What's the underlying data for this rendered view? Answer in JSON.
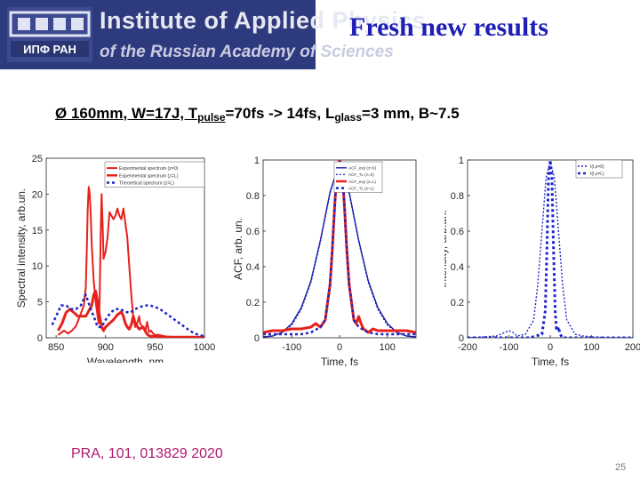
{
  "header": {
    "institute_line1": "Institute of Applied Physics",
    "institute_line2": "of the Russian Academy of Sciences",
    "logo_text": "ИПФ РАН",
    "slide_title": "Fresh new results",
    "banner_color": "#2e3a7e",
    "title_color": "#1f1fb8"
  },
  "params": {
    "part1": "Ø 160mm, W=17J, T",
    "sub1": "pulse",
    "part2": "=70fs -> 14fs, L",
    "sub2": "glass",
    "part3": "=3 mm, B~7.5"
  },
  "reference": "PRA, 101,  013829 2020",
  "page_number": "25",
  "chart_data": [
    {
      "type": "line",
      "xlabel": "Wavelength, nm",
      "ylabel": "Spectral intensity, arb.un.",
      "xlim": [
        840,
        1000
      ],
      "ylim": [
        0,
        25
      ],
      "xticks": [
        850,
        900,
        950,
        1000
      ],
      "yticks": [
        0,
        5,
        10,
        15,
        20,
        25
      ],
      "legend_position": "top-right",
      "series": [
        {
          "name": "Experimental spectrum (z=0)",
          "color": "#e8201c",
          "width": 2,
          "dash": "",
          "x": [
            852,
            858,
            862,
            866,
            870,
            874,
            878,
            880,
            881,
            882,
            883,
            884,
            885,
            886,
            888,
            890,
            892,
            893,
            894,
            895,
            896,
            897,
            898,
            900,
            902,
            904,
            906,
            908,
            910,
            912,
            914,
            916,
            918,
            920,
            922,
            924,
            926,
            928,
            930,
            932,
            934,
            935,
            936,
            938,
            940,
            942,
            944,
            946,
            948,
            950,
            954,
            960,
            970,
            980,
            990,
            1000
          ],
          "y": [
            0.4,
            1.0,
            0.6,
            1.0,
            1.6,
            3.0,
            4.5,
            7.0,
            12.0,
            18.0,
            21.0,
            20.0,
            17.0,
            13.0,
            8.0,
            5.0,
            3.0,
            2.0,
            5.0,
            14.0,
            20.0,
            16.0,
            11.0,
            12.0,
            14.0,
            17.5,
            17.0,
            16.5,
            17.0,
            18.0,
            17.0,
            16.5,
            18.0,
            16.0,
            14.0,
            10.0,
            6.0,
            3.0,
            1.5,
            2.0,
            3.0,
            2.0,
            1.8,
            1.5,
            0.8,
            2.2,
            0.8,
            1.0,
            0.6,
            0.4,
            0.4,
            0.2,
            0.1,
            0.1,
            0.1,
            0.1
          ]
        },
        {
          "name": "Experimental spectrum (z=L)",
          "color": "#e8201c",
          "width": 3,
          "dash": "",
          "x": [
            852,
            856,
            860,
            864,
            868,
            872,
            876,
            880,
            884,
            886,
            888,
            890,
            892,
            894,
            896,
            898,
            900,
            904,
            908,
            912,
            916,
            918,
            920,
            922,
            924,
            926,
            928,
            930,
            934,
            938,
            940,
            942,
            944,
            946,
            950,
            954,
            960,
            980,
            1000
          ],
          "y": [
            1.0,
            2.0,
            3.5,
            4.0,
            3.5,
            3.0,
            3.0,
            3.0,
            4.0,
            4.5,
            6.0,
            6.5,
            5.0,
            3.0,
            1.5,
            1.0,
            1.5,
            2.0,
            2.5,
            3.2,
            3.6,
            3.0,
            2.0,
            1.5,
            1.2,
            1.8,
            3.0,
            2.0,
            1.2,
            1.5,
            1.0,
            0.5,
            0.3,
            0.2,
            0.2,
            0.1,
            0.1,
            0.1,
            0.1
          ]
        },
        {
          "name": "Theoretical spectrum (z=L)",
          "color": "#1c24c8",
          "width": 2.5,
          "dash": "3,3",
          "x": [
            846,
            850,
            855,
            860,
            865,
            870,
            875,
            880,
            885,
            888,
            892,
            896,
            900,
            905,
            910,
            915,
            920,
            925,
            930,
            935,
            940,
            945,
            950,
            955,
            960,
            965,
            970,
            975,
            980,
            985,
            990,
            995,
            1000
          ],
          "y": [
            1.8,
            3.0,
            4.5,
            4.5,
            4.0,
            4.0,
            4.5,
            6.0,
            4.0,
            3.0,
            1.5,
            1.5,
            2.5,
            3.5,
            4.0,
            4.0,
            3.6,
            3.5,
            4.0,
            4.3,
            4.5,
            4.5,
            4.3,
            4.0,
            3.5,
            3.0,
            2.5,
            2.0,
            1.5,
            1.0,
            0.6,
            0.4,
            0.2
          ]
        }
      ]
    },
    {
      "type": "line",
      "xlabel": "Time, fs",
      "ylabel": "ACF, arb. un.",
      "xlim": [
        -160,
        160
      ],
      "ylim": [
        0,
        1
      ],
      "xticks": [
        -100,
        0,
        100
      ],
      "yticks": [
        0,
        0.2,
        0.4,
        0.6,
        0.8,
        1
      ],
      "legend_position": "top-right",
      "series": [
        {
          "name": "ACF_exp (z=0)",
          "color": "#1c1c9e",
          "width": 1.4,
          "dash": "",
          "x": [
            -160,
            -140,
            -120,
            -100,
            -80,
            -60,
            -40,
            -20,
            0,
            20,
            40,
            60,
            80,
            100,
            120,
            140,
            160
          ],
          "y": [
            0.005,
            0.01,
            0.03,
            0.08,
            0.17,
            0.32,
            0.55,
            0.82,
            0.985,
            0.82,
            0.55,
            0.32,
            0.17,
            0.08,
            0.03,
            0.01,
            0.005
          ]
        },
        {
          "name": "ACF_TL (z=0)",
          "color": "#1c24c8",
          "width": 1.2,
          "dash": "2,2",
          "x": [
            -160,
            -140,
            -120,
            -100,
            -80,
            -60,
            -40,
            -20,
            0,
            20,
            40,
            60,
            80,
            100,
            120,
            140,
            160
          ],
          "y": [
            0.005,
            0.01,
            0.03,
            0.07,
            0.16,
            0.31,
            0.54,
            0.81,
            0.99,
            0.81,
            0.54,
            0.31,
            0.16,
            0.07,
            0.03,
            0.01,
            0.005
          ]
        },
        {
          "name": "ACF_exp (z=L)",
          "color": "#e8201c",
          "width": 3,
          "dash": "",
          "x": [
            -160,
            -140,
            -120,
            -100,
            -80,
            -60,
            -50,
            -40,
            -30,
            -20,
            -15,
            -10,
            -5,
            0,
            5,
            10,
            15,
            20,
            30,
            35,
            40,
            45,
            50,
            60,
            70,
            80,
            100,
            120,
            140,
            160
          ],
          "y": [
            0.03,
            0.04,
            0.04,
            0.05,
            0.05,
            0.06,
            0.08,
            0.06,
            0.1,
            0.3,
            0.5,
            0.75,
            0.95,
            1.0,
            0.95,
            0.75,
            0.5,
            0.3,
            0.1,
            0.08,
            0.12,
            0.08,
            0.05,
            0.03,
            0.05,
            0.04,
            0.04,
            0.04,
            0.04,
            0.03
          ]
        },
        {
          "name": "ACF_TL (z=L)",
          "color": "#1c24c8",
          "width": 2.5,
          "dash": "3,3",
          "x": [
            -160,
            -120,
            -80,
            -60,
            -40,
            -30,
            -20,
            -15,
            -10,
            -5,
            0,
            5,
            10,
            15,
            20,
            30,
            40,
            60,
            80,
            120,
            160
          ],
          "y": [
            0.02,
            0.02,
            0.02,
            0.03,
            0.06,
            0.1,
            0.3,
            0.5,
            0.75,
            0.95,
            1.0,
            0.95,
            0.75,
            0.5,
            0.3,
            0.1,
            0.06,
            0.03,
            0.02,
            0.02,
            0.02
          ]
        }
      ]
    },
    {
      "type": "line",
      "xlabel": "Time, fs",
      "ylabel": "Intensity, arb.un.",
      "xlim": [
        -200,
        200
      ],
      "ylim": [
        0,
        1
      ],
      "xticks": [
        -200,
        -100,
        0,
        100,
        200
      ],
      "yticks": [
        0,
        0.2,
        0.4,
        0.6,
        0.8,
        1
      ],
      "legend_position": "top-right",
      "series": [
        {
          "name": "I(t,z=0)",
          "color": "#1c24c8",
          "width": 1.4,
          "dash": "2,2",
          "x": [
            -200,
            -160,
            -130,
            -120,
            -110,
            -100,
            -90,
            -80,
            -60,
            -40,
            -30,
            -20,
            -10,
            0,
            10,
            20,
            30,
            40,
            60,
            80,
            100,
            140,
            200
          ],
          "y": [
            0.0,
            0.005,
            0.01,
            0.02,
            0.03,
            0.04,
            0.03,
            0.01,
            0.02,
            0.1,
            0.3,
            0.6,
            0.9,
            0.99,
            0.9,
            0.6,
            0.3,
            0.1,
            0.02,
            0.01,
            0.005,
            0.0,
            0.0
          ]
        },
        {
          "name": "I(t,z=L)",
          "color": "#1c24c8",
          "width": 3,
          "dash": "3,3",
          "x": [
            -200,
            -50,
            -20,
            -12,
            -8,
            -4,
            0,
            4,
            8,
            12,
            15,
            18,
            20,
            24,
            30,
            50,
            200
          ],
          "y": [
            0.0,
            0.0,
            0.02,
            0.15,
            0.5,
            0.9,
            1.0,
            0.9,
            0.5,
            0.15,
            0.05,
            0.04,
            0.06,
            0.02,
            0.0,
            0.0,
            0.0
          ]
        }
      ]
    }
  ]
}
